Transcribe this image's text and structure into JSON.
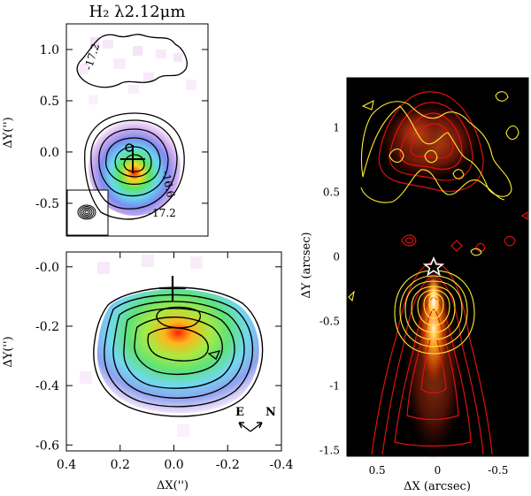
{
  "figure_title": "H₂ λ2.12μm",
  "chart_data": [
    {
      "type": "heatmap",
      "panel": "top-left",
      "title": "H₂ λ2.12μm",
      "ylabel": "ΔY('')",
      "xlim": [
        0.45,
        -0.45
      ],
      "ylim": [
        -0.82,
        1.25
      ],
      "y_ticks": [
        "1.0",
        "0.5",
        "0.0",
        "-0.5"
      ],
      "y_tick_values": [
        1.0,
        0.5,
        0.0,
        -0.5
      ],
      "contour_labels": [
        "-17.2",
        "-16.6",
        "-17.2"
      ],
      "source_marker_position": [
        0.0,
        0.0
      ],
      "inset": "beam"
    },
    {
      "type": "heatmap",
      "panel": "bottom-left",
      "xlabel": "ΔX('')",
      "ylabel": "ΔY('')",
      "xlim": [
        0.4,
        -0.4
      ],
      "ylim": [
        -0.62,
        0.05
      ],
      "x_ticks": [
        "0.4",
        "0.2",
        "0.0",
        "-0.2",
        "-0.4"
      ],
      "x_tick_values": [
        0.4,
        0.2,
        0.0,
        -0.2,
        -0.4
      ],
      "y_ticks": [
        "-0.0",
        "-0.2",
        "-0.4",
        "-0.6"
      ],
      "y_tick_values": [
        0.0,
        -0.2,
        -0.4,
        -0.6
      ],
      "source_marker_position": [
        0.0,
        -0.01
      ],
      "compass": {
        "east": "E",
        "north": "N"
      }
    },
    {
      "type": "heatmap",
      "panel": "right",
      "xlabel": "ΔX (arcsec)",
      "ylabel": "ΔY (arcsec)",
      "xlim": [
        0.75,
        -0.75
      ],
      "ylim": [
        -1.55,
        1.38
      ],
      "x_ticks": [
        "0.5",
        "0",
        "-0.5"
      ],
      "x_tick_values": [
        0.5,
        0.0,
        -0.5
      ],
      "y_ticks": [
        "1",
        "0.5",
        "0",
        "-0.5",
        "-1",
        "-1.5"
      ],
      "y_tick_values": [
        1.0,
        0.5,
        0.0,
        -0.5,
        -1.0,
        -1.5
      ],
      "contour_colors": {
        "red": "#e01010",
        "yellow": "#ffee33"
      },
      "source_marker": "star",
      "source_marker_position": [
        0.0,
        0.0
      ]
    }
  ]
}
